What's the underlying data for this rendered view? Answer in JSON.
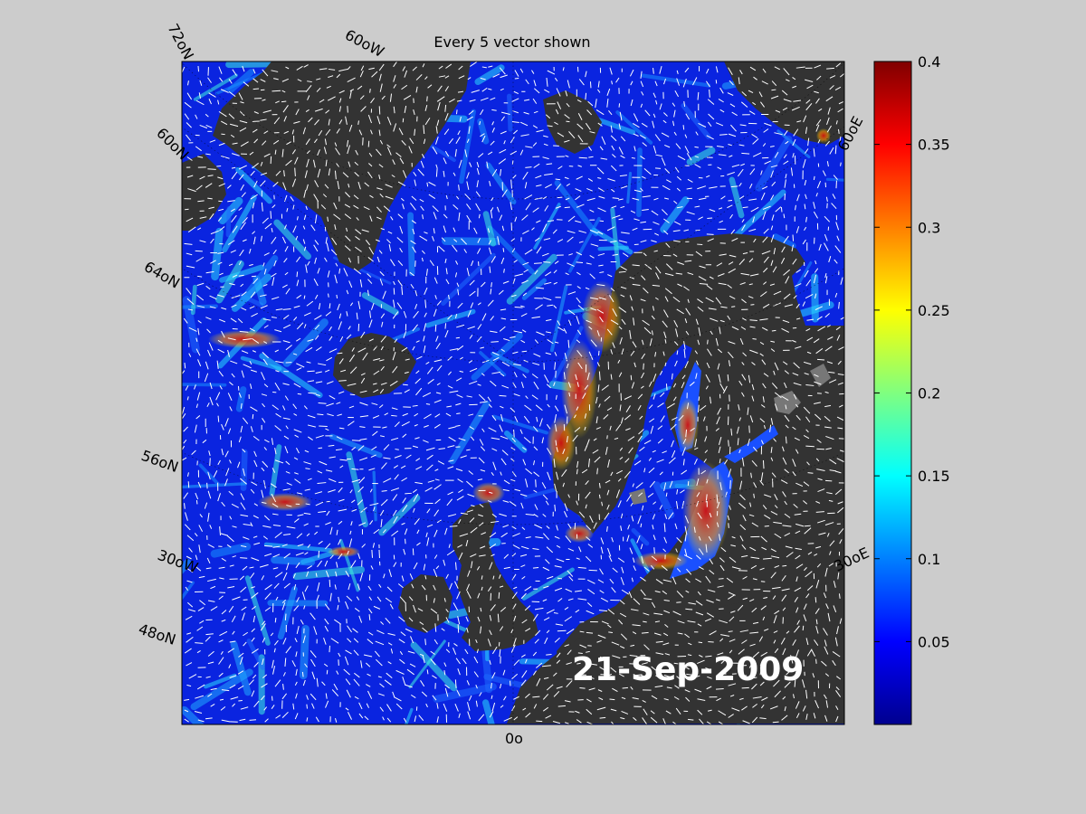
{
  "figure": {
    "title": "Every 5 vector shown",
    "date": "21-Sep-2009"
  },
  "graticule_labels": {
    "lat_72N": "72oN",
    "lon_60W": "60oW",
    "lat_60N": "60oN",
    "lat_64N": "64oN",
    "lat_56N": "56oN",
    "lon_30W": "30oW",
    "lat_48N": "48oN",
    "lon_0": "0o",
    "lon_60E": "60oE",
    "lon_30E": "30oE"
  },
  "colorbar": {
    "colormap": "jet",
    "min": 0,
    "max": 0.4,
    "tick_labels": [
      "0.4",
      "0.35",
      "0.3",
      "0.25",
      "0.2",
      "0.15",
      "0.1",
      "0.05"
    ],
    "tick_values": [
      0.4,
      0.35,
      0.3,
      0.25,
      0.2,
      0.15,
      0.1,
      0.05
    ]
  },
  "colors": {
    "figure_background": "#cccccc",
    "land": "#333333",
    "lakes": "#777777",
    "ocean_low": "#0a1ee6",
    "vectors": "#ffffff"
  }
}
